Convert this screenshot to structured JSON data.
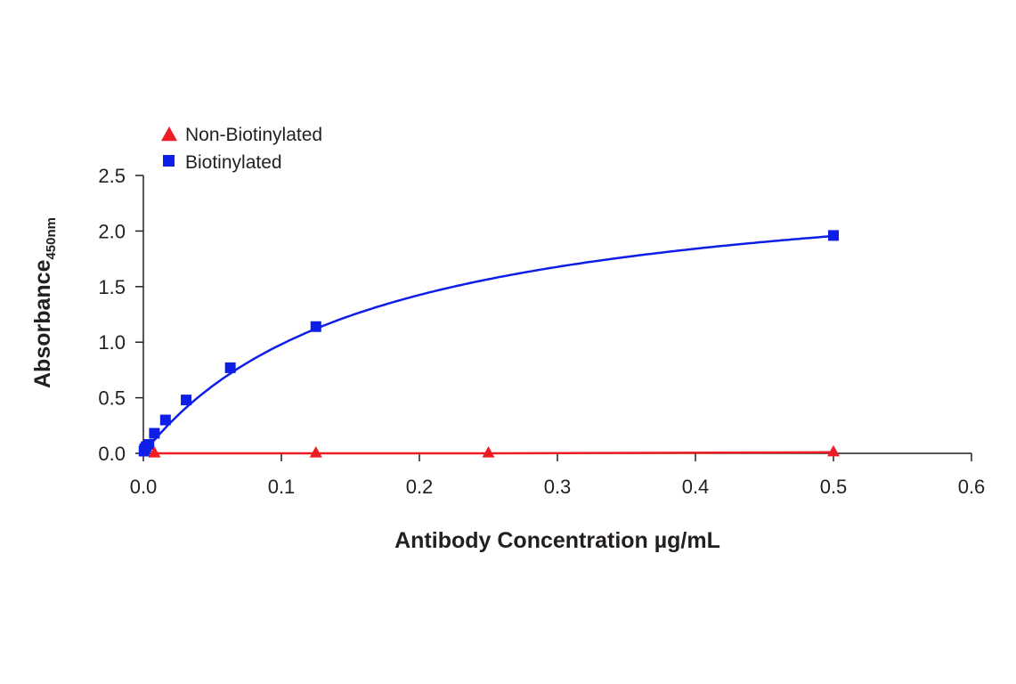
{
  "chart_data": {
    "type": "line",
    "xlabel": "Antibody Concentration µg/mL",
    "ylabel": "Absorbance",
    "ylabel_subscript": "450nm",
    "xlim": [
      0,
      0.6
    ],
    "ylim": [
      0,
      2.5
    ],
    "x_ticks": [
      "0.0",
      "0.1",
      "0.2",
      "0.3",
      "0.4",
      "0.5",
      "0.6"
    ],
    "y_ticks": [
      "0.0",
      "0.5",
      "1.0",
      "1.5",
      "2.0",
      "2.5"
    ],
    "grid": false,
    "legend_position": "top-left",
    "series": [
      {
        "name": "Non-Biotinylated",
        "marker": "triangle",
        "color": "#ee1c25",
        "x": [
          0.008,
          0.125,
          0.25,
          0.5
        ],
        "y": [
          0.0,
          0.0,
          0.0,
          0.01
        ]
      },
      {
        "name": "Biotinylated",
        "marker": "square",
        "color": "#0e1ee6",
        "x": [
          0.0005,
          0.001,
          0.002,
          0.004,
          0.008,
          0.016,
          0.031,
          0.063,
          0.125,
          0.5
        ],
        "y": [
          0.02,
          0.04,
          0.06,
          0.08,
          0.18,
          0.3,
          0.48,
          0.77,
          1.14,
          1.96
        ]
      }
    ]
  }
}
